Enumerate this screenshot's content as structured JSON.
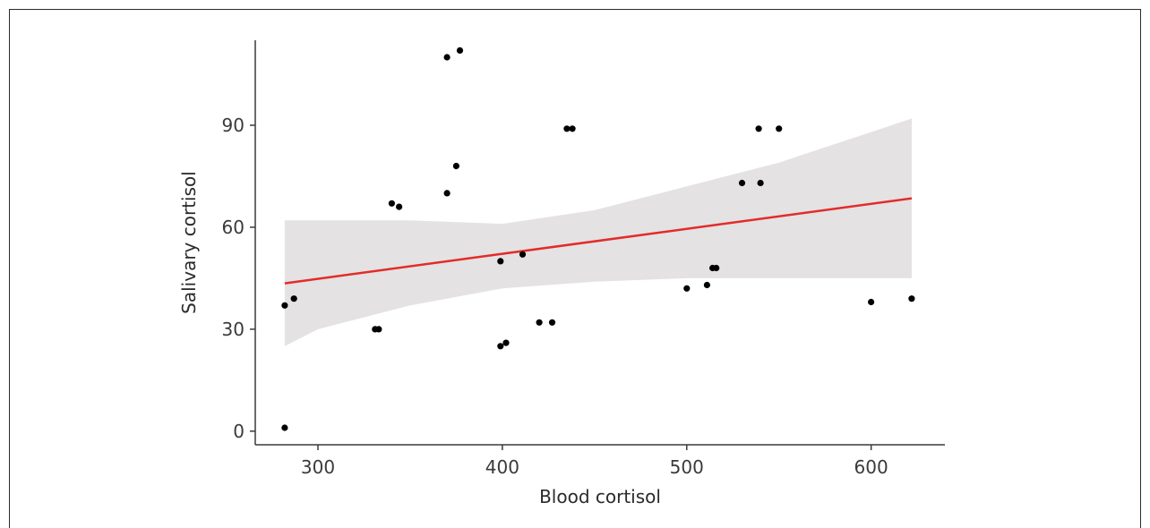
{
  "chart_data": {
    "type": "scatter",
    "title": "",
    "xlabel": "Blood cortisol",
    "ylabel": "Salivary cortisol",
    "xlim": [
      266,
      640
    ],
    "ylim": [
      -4,
      115
    ],
    "x_ticks": [
      300,
      400,
      500,
      600
    ],
    "y_ticks": [
      0,
      30,
      60,
      90
    ],
    "grid": false,
    "legend": "none",
    "points": [
      {
        "x": 282,
        "y": 1
      },
      {
        "x": 282,
        "y": 37
      },
      {
        "x": 287,
        "y": 39
      },
      {
        "x": 331,
        "y": 30
      },
      {
        "x": 333,
        "y": 30
      },
      {
        "x": 340,
        "y": 67
      },
      {
        "x": 344,
        "y": 66
      },
      {
        "x": 370,
        "y": 110
      },
      {
        "x": 370,
        "y": 70
      },
      {
        "x": 375,
        "y": 78
      },
      {
        "x": 377,
        "y": 112
      },
      {
        "x": 399,
        "y": 50
      },
      {
        "x": 399,
        "y": 25
      },
      {
        "x": 402,
        "y": 26
      },
      {
        "x": 411,
        "y": 52
      },
      {
        "x": 420,
        "y": 32
      },
      {
        "x": 427,
        "y": 32
      },
      {
        "x": 435,
        "y": 89
      },
      {
        "x": 438,
        "y": 89
      },
      {
        "x": 500,
        "y": 42
      },
      {
        "x": 511,
        "y": 43
      },
      {
        "x": 514,
        "y": 48
      },
      {
        "x": 516,
        "y": 48
      },
      {
        "x": 530,
        "y": 73
      },
      {
        "x": 539,
        "y": 89
      },
      {
        "x": 540,
        "y": 73
      },
      {
        "x": 550,
        "y": 89
      },
      {
        "x": 600,
        "y": 38
      },
      {
        "x": 622,
        "y": 39
      }
    ],
    "regression_line": {
      "x": [
        282,
        622
      ],
      "y": [
        43.5,
        68.5
      ]
    },
    "confidence_band": {
      "x": [
        282,
        300,
        350,
        400,
        450,
        500,
        550,
        600,
        622
      ],
      "lower": [
        25,
        30,
        37,
        42,
        44,
        45,
        45,
        45,
        45
      ],
      "upper": [
        62,
        62,
        62,
        61,
        65,
        72,
        79,
        88,
        92
      ]
    },
    "colors": {
      "points": "#000000",
      "regression_line": "#e32b2b",
      "confidence_band": "#e4e2e2",
      "axis": "#3a3a3a"
    }
  }
}
